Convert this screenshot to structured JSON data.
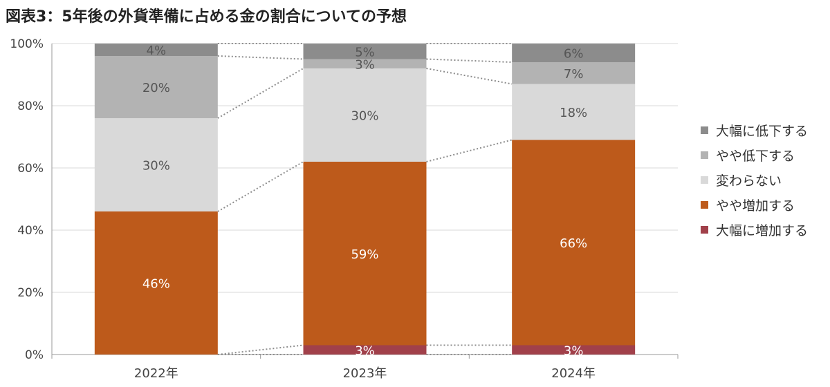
{
  "title": "図表3：5年後の外貨準備に占める金の割合についての予想",
  "chart_data": {
    "type": "stacked-bar",
    "categories": [
      "2022年",
      "2023年",
      "2024年"
    ],
    "yticks": [
      "0%",
      "20%",
      "40%",
      "60%",
      "80%",
      "100%"
    ],
    "ylim": [
      0,
      100
    ],
    "series": [
      {
        "name": "大幅に増加する",
        "color": "#a1404a",
        "values": [
          0,
          3,
          3
        ],
        "labels": [
          "",
          "3%",
          "3%"
        ],
        "label_color": "#ffffff"
      },
      {
        "name": "やや増加する",
        "color": "#bd5a1b",
        "values": [
          46,
          59,
          66
        ],
        "labels": [
          "46%",
          "59%",
          "66%"
        ],
        "label_color": "#ffffff"
      },
      {
        "name": "変わらない",
        "color": "#d9d9d9",
        "values": [
          30,
          30,
          18
        ],
        "labels": [
          "30%",
          "30%",
          "18%"
        ],
        "label_color": "#555555"
      },
      {
        "name": "やや低下する",
        "color": "#b3b3b3",
        "values": [
          20,
          3,
          7
        ],
        "labels": [
          "20%",
          "3%",
          "7%"
        ],
        "label_color": "#555555"
      },
      {
        "name": "大幅に低下する",
        "color": "#8c8c8c",
        "values": [
          4,
          5,
          6
        ],
        "labels": [
          "4%",
          "5%",
          "6%"
        ],
        "label_color": "#555555"
      }
    ],
    "legend_order": [
      "大幅に低下する",
      "やや低下する",
      "変わらない",
      "やや増加する",
      "大幅に増加する"
    ],
    "legend_position": "right",
    "grid": true
  }
}
